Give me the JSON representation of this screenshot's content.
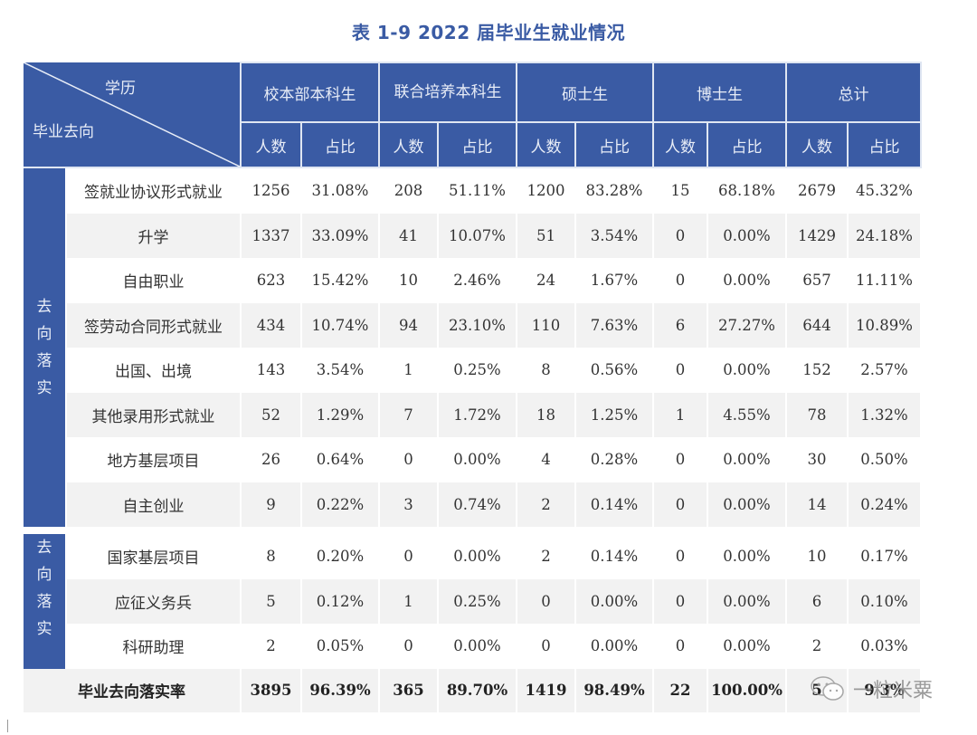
{
  "title": "表 1-9  2022 届毕业生就业情况",
  "header": {
    "diag_top": "学历",
    "diag_bottom": "毕业去向",
    "groups": [
      "校本部本科生",
      "联合培养本科生",
      "硕士生",
      "博士生",
      "总计"
    ],
    "sub": {
      "count": "人数",
      "ratio": "占比"
    }
  },
  "sections": [
    {
      "side_label": "去\n向\n落\n实",
      "side_chars": [
        "去",
        "向",
        "落",
        "实"
      ]
    },
    {
      "side_label": "去\n向\n落\n实",
      "side_chars": [
        "去",
        "向",
        "落",
        "实"
      ]
    }
  ],
  "rows": [
    {
      "label": "签就业协议形式就业",
      "values": [
        "1256",
        "31.08%",
        "208",
        "51.11%",
        "1200",
        "83.28%",
        "15",
        "68.18%",
        "2679",
        "45.32%"
      ]
    },
    {
      "label": "升学",
      "values": [
        "1337",
        "33.09%",
        "41",
        "10.07%",
        "51",
        "3.54%",
        "0",
        "0.00%",
        "1429",
        "24.18%"
      ]
    },
    {
      "label": "自由职业",
      "values": [
        "623",
        "15.42%",
        "10",
        "2.46%",
        "24",
        "1.67%",
        "0",
        "0.00%",
        "657",
        "11.11%"
      ]
    },
    {
      "label": "签劳动合同形式就业",
      "values": [
        "434",
        "10.74%",
        "94",
        "23.10%",
        "110",
        "7.63%",
        "6",
        "27.27%",
        "644",
        "10.89%"
      ]
    },
    {
      "label": "出国、出境",
      "values": [
        "143",
        "3.54%",
        "1",
        "0.25%",
        "8",
        "0.56%",
        "0",
        "0.00%",
        "152",
        "2.57%"
      ]
    },
    {
      "label": "其他录用形式就业",
      "values": [
        "52",
        "1.29%",
        "7",
        "1.72%",
        "18",
        "1.25%",
        "1",
        "4.55%",
        "78",
        "1.32%"
      ]
    },
    {
      "label": "地方基层项目",
      "values": [
        "26",
        "0.64%",
        "0",
        "0.00%",
        "4",
        "0.28%",
        "0",
        "0.00%",
        "30",
        "0.50%"
      ]
    },
    {
      "label": "自主创业",
      "values": [
        "9",
        "0.22%",
        "3",
        "0.74%",
        "2",
        "0.14%",
        "0",
        "0.00%",
        "14",
        "0.24%"
      ]
    },
    {
      "label": "国家基层项目",
      "values": [
        "8",
        "0.20%",
        "0",
        "0.00%",
        "2",
        "0.14%",
        "0",
        "0.00%",
        "10",
        "0.17%"
      ]
    },
    {
      "label": "应征义务兵",
      "values": [
        "5",
        "0.12%",
        "1",
        "0.25%",
        "0",
        "0.00%",
        "0",
        "0.00%",
        "6",
        "0.10%"
      ]
    },
    {
      "label": "科研助理",
      "values": [
        "2",
        "0.05%",
        "0",
        "0.00%",
        "0",
        "0.00%",
        "0",
        "0.00%",
        "2",
        "0.03%"
      ]
    }
  ],
  "total": {
    "label": "毕业去向落实率",
    "values": [
      "3895",
      "96.39%",
      "365",
      "89.70%",
      "1419",
      "98.49%",
      "22",
      "100.00%",
      "5",
      "9  3%"
    ]
  },
  "watermark": {
    "text": "一粒米粟",
    "icon": "wechat-icon"
  },
  "colors": {
    "header_blue": "#3a5ba4",
    "row_alt": "#f2f2f2",
    "title": "#3a5ba4"
  }
}
